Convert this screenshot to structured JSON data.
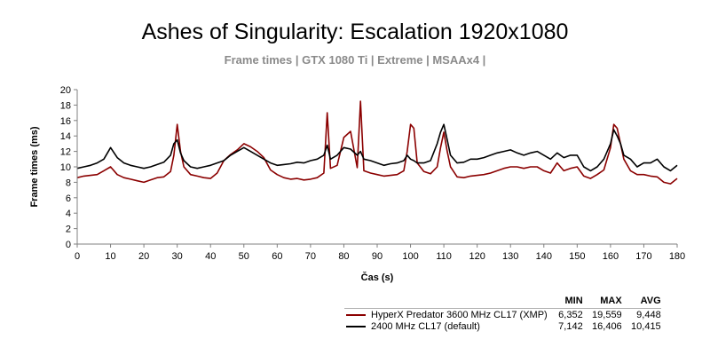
{
  "chart_data": {
    "type": "line",
    "title": "Ashes of Singularity: Escalation 1920x1080",
    "subtitle": "Frame times | GTX 1080 Ti | Extreme | MSAAx4 |",
    "xlabel": "Čas (s)",
    "ylabel": "Frame times (ms)",
    "xlim": [
      0,
      180
    ],
    "ylim": [
      0,
      20
    ],
    "x_ticks": [
      0,
      10,
      20,
      30,
      40,
      50,
      60,
      70,
      80,
      90,
      100,
      110,
      120,
      130,
      140,
      150,
      160,
      170,
      180
    ],
    "y_ticks": [
      0,
      2,
      4,
      6,
      8,
      10,
      12,
      14,
      16,
      18,
      20
    ],
    "grid": false,
    "legend_placement": "bottom-right",
    "stat_headers": [
      "MIN",
      "MAX",
      "AVG"
    ],
    "series": [
      {
        "name": "HyperX Predator 3600 MHz CL17 (XMP)",
        "color": "#8b0000",
        "min": "6,352",
        "max": "19,559",
        "avg": "9,448",
        "x": [
          0,
          2,
          4,
          6,
          8,
          10,
          12,
          14,
          16,
          18,
          20,
          22,
          24,
          26,
          28,
          29,
          30,
          31,
          32,
          34,
          36,
          38,
          40,
          42,
          44,
          46,
          48,
          50,
          52,
          54,
          56,
          58,
          60,
          62,
          64,
          66,
          68,
          70,
          72,
          74,
          75,
          76,
          78,
          80,
          82,
          84,
          85,
          86,
          88,
          90,
          92,
          94,
          96,
          98,
          99,
          100,
          101,
          102,
          104,
          106,
          108,
          109,
          110,
          111,
          112,
          114,
          116,
          118,
          120,
          122,
          124,
          126,
          128,
          130,
          132,
          134,
          136,
          138,
          140,
          142,
          144,
          146,
          148,
          150,
          152,
          154,
          156,
          158,
          160,
          161,
          162,
          163,
          164,
          166,
          168,
          170,
          172,
          174,
          176,
          178,
          180
        ],
        "y": [
          8.6,
          8.8,
          8.9,
          9.0,
          9.5,
          10.0,
          9.0,
          8.6,
          8.4,
          8.2,
          8.0,
          8.3,
          8.6,
          8.7,
          9.4,
          11.5,
          15.5,
          12.0,
          10.0,
          9.0,
          8.8,
          8.6,
          8.5,
          9.2,
          10.8,
          11.6,
          12.2,
          13.0,
          12.6,
          12.0,
          11.2,
          9.6,
          9.0,
          8.6,
          8.4,
          8.5,
          8.3,
          8.4,
          8.6,
          9.2,
          17.0,
          9.8,
          10.2,
          13.8,
          14.6,
          9.9,
          18.5,
          9.5,
          9.2,
          9.0,
          8.8,
          8.9,
          9.0,
          9.5,
          12.0,
          15.5,
          15.0,
          10.5,
          9.4,
          9.1,
          10.0,
          12.5,
          14.5,
          12.0,
          10.0,
          8.7,
          8.6,
          8.8,
          8.9,
          9.0,
          9.2,
          9.5,
          9.8,
          10.0,
          10.0,
          9.8,
          10.0,
          10.0,
          9.5,
          9.2,
          10.5,
          9.5,
          9.8,
          10.0,
          8.8,
          8.5,
          9.0,
          9.6,
          12.5,
          15.5,
          15.0,
          13.0,
          11.0,
          9.5,
          9.0,
          9.0,
          8.8,
          8.7,
          8.0,
          7.8,
          8.5
        ]
      },
      {
        "name": "2400 MHz CL17 (default)",
        "color": "#000000",
        "min": "7,142",
        "max": "16,406",
        "avg": "10,415",
        "x": [
          0,
          2,
          4,
          6,
          8,
          10,
          12,
          14,
          16,
          18,
          20,
          22,
          24,
          26,
          28,
          29,
          30,
          31,
          32,
          34,
          36,
          38,
          40,
          42,
          44,
          46,
          48,
          50,
          52,
          54,
          56,
          58,
          60,
          62,
          64,
          66,
          68,
          70,
          72,
          74,
          75,
          76,
          78,
          80,
          82,
          84,
          85,
          86,
          88,
          90,
          92,
          94,
          96,
          98,
          99,
          100,
          101,
          102,
          104,
          106,
          108,
          109,
          110,
          111,
          112,
          114,
          116,
          118,
          120,
          122,
          124,
          126,
          128,
          130,
          132,
          134,
          136,
          138,
          140,
          142,
          144,
          146,
          148,
          150,
          152,
          154,
          156,
          158,
          160,
          161,
          162,
          163,
          164,
          166,
          168,
          170,
          172,
          174,
          176,
          178,
          180
        ],
        "y": [
          9.8,
          10.0,
          10.2,
          10.5,
          11.0,
          12.5,
          11.2,
          10.5,
          10.2,
          10.0,
          9.8,
          10.0,
          10.3,
          10.6,
          11.5,
          13.0,
          13.5,
          11.8,
          10.8,
          10.0,
          9.8,
          10.0,
          10.2,
          10.5,
          10.8,
          11.5,
          12.0,
          12.5,
          12.0,
          11.5,
          11.0,
          10.5,
          10.2,
          10.3,
          10.4,
          10.6,
          10.5,
          10.8,
          11.0,
          11.5,
          12.8,
          11.0,
          11.5,
          12.5,
          12.3,
          11.5,
          12.0,
          11.0,
          10.8,
          10.5,
          10.2,
          10.4,
          10.5,
          10.8,
          11.5,
          11.0,
          10.8,
          10.5,
          10.5,
          10.8,
          13.0,
          14.5,
          15.5,
          13.5,
          11.5,
          10.5,
          10.6,
          11.0,
          11.0,
          11.2,
          11.5,
          11.8,
          12.0,
          12.2,
          11.8,
          11.5,
          11.8,
          12.0,
          11.5,
          11.0,
          11.8,
          11.2,
          11.5,
          11.5,
          10.0,
          9.5,
          10.0,
          11.0,
          13.0,
          14.8,
          14.0,
          13.0,
          11.5,
          11.0,
          10.0,
          10.5,
          10.5,
          11.0,
          10.0,
          9.5,
          10.2
        ]
      }
    ]
  }
}
